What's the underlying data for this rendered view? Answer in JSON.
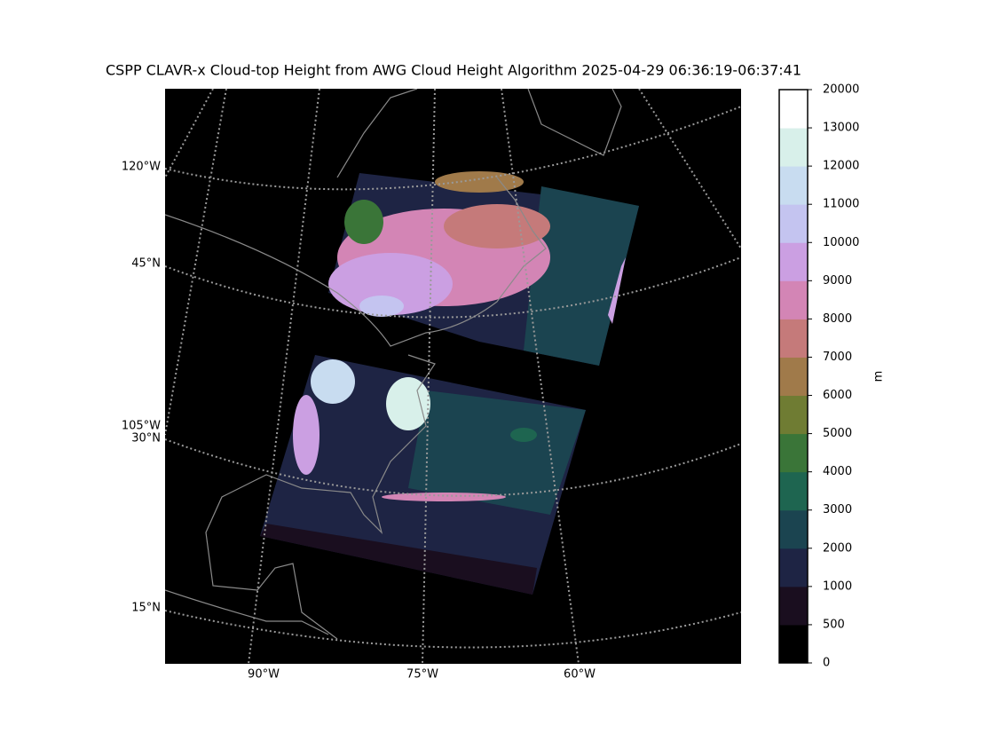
{
  "title": "CSPP CLAVR-x Cloud-top Height from AWG Cloud Height Algorithm 2025-04-29 06:36:19-06:37:41",
  "map": {
    "left_labels": [
      "120°W",
      "45°N",
      "105°W",
      "30°N",
      "15°N"
    ],
    "bottom_labels": [
      "90°W",
      "75°W",
      "60°W"
    ]
  },
  "colorbar": {
    "label": "m",
    "ticks": [
      0,
      500,
      1000,
      2000,
      3000,
      4000,
      5000,
      6000,
      7000,
      8000,
      9000,
      10000,
      11000,
      12000,
      13000,
      20000
    ],
    "colors": [
      "#000000",
      "#1a0e1f",
      "#1e2444",
      "#1b4450",
      "#1e6550",
      "#3a7538",
      "#6f7c33",
      "#a07a4a",
      "#c57a7a",
      "#d385b5",
      "#cb9fe2",
      "#c4c4f0",
      "#c8dcf0",
      "#d8f0ea",
      "#ffffff"
    ]
  }
}
